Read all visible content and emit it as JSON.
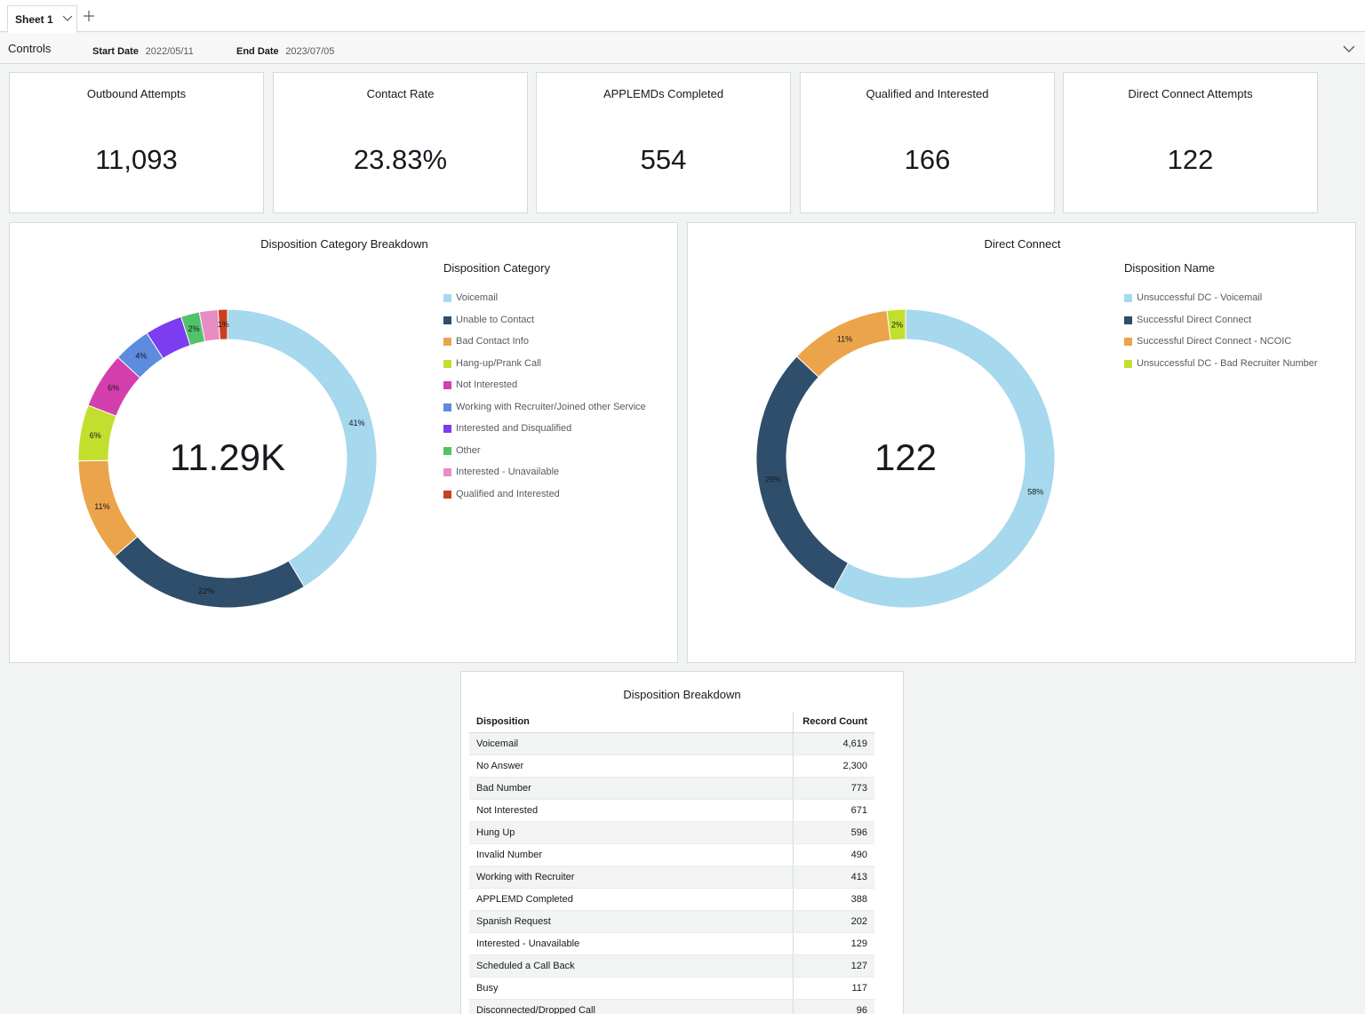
{
  "tabs": {
    "sheet_label": "Sheet 1"
  },
  "controls": {
    "label": "Controls",
    "start_label": "Start Date",
    "start_value": "2022/05/11",
    "end_label": "End Date",
    "end_value": "2023/07/05"
  },
  "kpis": [
    {
      "title": "Outbound Attempts",
      "value": "11,093"
    },
    {
      "title": "Contact Rate",
      "value": "23.83%"
    },
    {
      "title": "APPLEMDs Completed",
      "value": "554"
    },
    {
      "title": "Qualified and Interested",
      "value": "166"
    },
    {
      "title": "Direct Connect Attempts",
      "value": "122"
    }
  ],
  "chart_data": [
    {
      "type": "pie",
      "title": "Disposition Category Breakdown",
      "legend_title": "Disposition Category",
      "center_value": "11.29K",
      "legend": "right",
      "categories": [
        "Voicemail",
        "Unable to Contact",
        "Bad Contact Info",
        "Hang-up/Prank Call",
        "Not Interested",
        "Working with Recruiter/Joined other Service",
        "Interested and Disqualified",
        "Other",
        "Interested - Unavailable",
        "Qualified and Interested"
      ],
      "values": [
        41,
        22,
        11,
        6,
        6,
        4,
        4,
        2,
        2,
        1
      ],
      "labels": [
        "41%",
        "22%",
        "11%",
        "6%",
        "6%",
        "4%",
        "",
        "2%",
        "",
        "1%"
      ],
      "colors": [
        "#a6d8ee",
        "#2e4e6b",
        "#eba44a",
        "#c2df2d",
        "#d43fae",
        "#5d8be0",
        "#7c3cf0",
        "#52c26a",
        "#e88dc4",
        "#c8401f"
      ]
    },
    {
      "type": "pie",
      "title": "Direct Connect",
      "legend_title": "Disposition Name",
      "center_value": "122",
      "legend": "right",
      "categories": [
        "Unsuccessful DC - Voicemail",
        "Successful Direct Connect",
        "Successful Direct Connect - NCOIC",
        "Unsuccessful DC - Bad Recruiter Number"
      ],
      "values": [
        58,
        29,
        11,
        2
      ],
      "labels": [
        "58%",
        "29%",
        "11%",
        "2%"
      ],
      "colors": [
        "#a6d8ee",
        "#2e4e6b",
        "#eba44a",
        "#c2df2d"
      ]
    }
  ],
  "table": {
    "title": "Disposition Breakdown",
    "headers": [
      "Disposition",
      "Record Count"
    ],
    "rows": [
      [
        "Voicemail",
        "4,619"
      ],
      [
        "No Answer",
        "2,300"
      ],
      [
        "Bad Number",
        "773"
      ],
      [
        "Not Interested",
        "671"
      ],
      [
        "Hung Up",
        "596"
      ],
      [
        "Invalid Number",
        "490"
      ],
      [
        "Working with Recruiter",
        "413"
      ],
      [
        "APPLEMD Completed",
        "388"
      ],
      [
        "Spanish Request",
        "202"
      ],
      [
        "Interested - Unavailable",
        "129"
      ],
      [
        "Scheduled a Call Back",
        "127"
      ],
      [
        "Busy",
        "117"
      ],
      [
        "Disconnected/Dropped Call",
        "96"
      ]
    ]
  }
}
